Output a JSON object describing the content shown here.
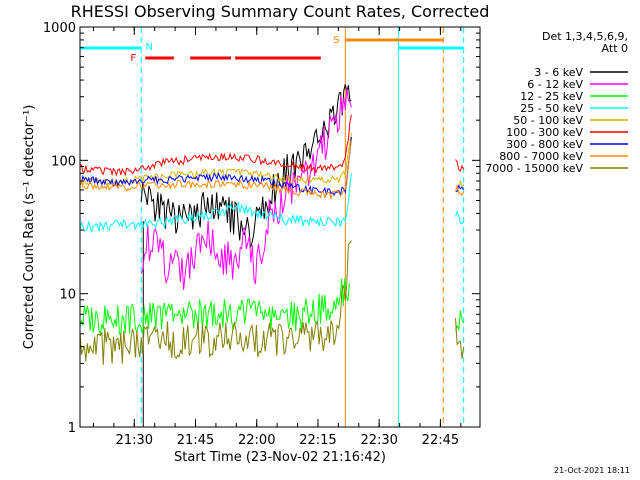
{
  "chart_data": {
    "type": "line",
    "title": "RHESSI Observing Summary Count Rates, Corrected",
    "xlabel": "Start Time (23-Nov-02 21:16:42)",
    "ylabel": "Corrected Count Rate (s⁻¹ detector⁻¹)",
    "y_scale": "log",
    "ylim": [
      1,
      1000
    ],
    "y_ticks": [
      {
        "value": 1,
        "label": "1"
      },
      {
        "value": 10,
        "label": "10"
      },
      {
        "value": 100,
        "label": "100"
      },
      {
        "value": 1000,
        "label": "1000"
      }
    ],
    "x_unit": "minutes after 21:16:42",
    "xlim": [
      0,
      98
    ],
    "x_ticks": [
      {
        "value": 13.3,
        "label": "21:30"
      },
      {
        "value": 28.3,
        "label": "21:45"
      },
      {
        "value": 43.3,
        "label": "22:00"
      },
      {
        "value": 58.3,
        "label": "22:15"
      },
      {
        "value": 73.3,
        "label": "22:30"
      },
      {
        "value": 88.3,
        "label": "22:45"
      }
    ],
    "legend": {
      "header": [
        "Det 1,3,4,5,6,9,",
        "Att 0"
      ],
      "placement": "right"
    },
    "series": [
      {
        "name": "3 - 6 keV",
        "color": "#000000",
        "x": [
          0,
          5,
          10,
          14.5,
          15,
          18,
          22,
          25,
          28,
          32,
          35,
          38,
          41,
          44,
          47,
          50,
          53,
          56,
          59,
          62,
          65,
          66.5
        ],
        "values": [
          null,
          null,
          null,
          null,
          60,
          48,
          38,
          35,
          40,
          45,
          42,
          36,
          28,
          40,
          55,
          80,
          95,
          110,
          150,
          200,
          290,
          280
        ]
      },
      {
        "name": "6 - 12 keV",
        "color": "#ff00ff",
        "x": [
          0,
          5,
          10,
          14.5,
          15,
          17,
          20,
          23,
          25,
          28,
          31,
          34,
          37,
          40,
          43,
          46,
          50,
          53,
          56,
          59,
          62,
          65,
          66.5
        ],
        "values": [
          null,
          null,
          null,
          null,
          20,
          25,
          18,
          15,
          14,
          18,
          28,
          22,
          16,
          24,
          15,
          35,
          58,
          62,
          70,
          110,
          200,
          300,
          250
        ]
      },
      {
        "name": "12 - 25 keV",
        "color": "#00ff00",
        "x": [
          0,
          5,
          10,
          15,
          20,
          25,
          30,
          35,
          40,
          45,
          50,
          55,
          60,
          63,
          66,
          67,
          91,
          92,
          94
        ],
        "values": [
          6.5,
          6.5,
          6.5,
          6.5,
          7,
          7,
          7,
          7,
          7,
          7,
          6.5,
          7,
          8,
          9,
          12,
          null,
          null,
          6,
          6
        ]
      },
      {
        "name": "25 - 50 keV",
        "color": "#00ffff",
        "x": [
          0,
          5,
          10,
          15,
          20,
          25,
          30,
          35,
          38,
          40,
          45,
          50,
          55,
          60,
          63,
          65,
          66.5,
          67,
          91,
          92,
          94
        ],
        "values": [
          32,
          32,
          33,
          33,
          34,
          36,
          38,
          42,
          45,
          43,
          38,
          36,
          35,
          35,
          34,
          35,
          80,
          null,
          null,
          40,
          35
        ]
      },
      {
        "name": "50 - 100 keV",
        "color": "#d4b400",
        "x": [
          0,
          5,
          10,
          15,
          20,
          25,
          30,
          35,
          40,
          45,
          50,
          55,
          60,
          63,
          65,
          66.5,
          67,
          91,
          92,
          94
        ],
        "values": [
          70,
          68,
          68,
          72,
          75,
          78,
          80,
          80,
          80,
          76,
          72,
          70,
          70,
          72,
          80,
          160,
          null,
          null,
          68,
          66
        ]
      },
      {
        "name": "100 - 300 keV",
        "color": "#ff0000",
        "x": [
          0,
          5,
          10,
          15,
          20,
          25,
          30,
          35,
          40,
          45,
          50,
          55,
          60,
          63,
          65,
          66.5,
          67,
          91,
          92,
          94
        ],
        "values": [
          88,
          84,
          82,
          86,
          95,
          100,
          105,
          106,
          104,
          100,
          92,
          88,
          86,
          88,
          100,
          220,
          null,
          null,
          95,
          85
        ]
      },
      {
        "name": "300 - 800 keV",
        "color": "#0000ff",
        "x": [
          0,
          5,
          10,
          15,
          20,
          25,
          30,
          35,
          40,
          45,
          50,
          55,
          60,
          63,
          65,
          66.5,
          67,
          91,
          92,
          94
        ],
        "values": [
          72,
          70,
          68,
          70,
          72,
          72,
          74,
          76,
          72,
          70,
          65,
          60,
          58,
          58,
          60,
          150,
          null,
          null,
          62,
          60
        ]
      },
      {
        "name": "800 - 7000 keV",
        "color": "#ff8800",
        "x": [
          0,
          5,
          10,
          15,
          20,
          25,
          30,
          35,
          40,
          45,
          50,
          55,
          60,
          63,
          65,
          66.5,
          67,
          91,
          92,
          94
        ],
        "values": [
          66,
          64,
          62,
          64,
          66,
          66,
          66,
          67,
          66,
          64,
          60,
          57,
          55,
          56,
          58,
          140,
          null,
          null,
          60,
          58
        ]
      },
      {
        "name": "7000 - 15000 keV",
        "color": "#808000",
        "x": [
          0,
          5,
          10,
          15,
          20,
          25,
          30,
          35,
          40,
          45,
          50,
          55,
          60,
          63,
          65,
          66.5,
          67,
          91,
          92,
          94
        ],
        "values": [
          4,
          4,
          4,
          4.5,
          4.5,
          4.5,
          4.5,
          4.5,
          4.5,
          4.5,
          4.5,
          4.5,
          4.5,
          5,
          12,
          25,
          null,
          null,
          5,
          4
        ]
      }
    ],
    "annotations": {
      "markers": [
        {
          "label": "N",
          "color": "#00ffff"
        },
        {
          "label": "F",
          "color": "#ff0000"
        },
        {
          "label": "S",
          "color": "#ff8800"
        }
      ],
      "flare_bars": [
        [
          16,
          23
        ],
        [
          27,
          37
        ],
        [
          38,
          59
        ]
      ],
      "saa_bar": [
        65,
        89
      ],
      "night_bar": [
        0,
        15
      ],
      "night_bar_2": [
        78,
        94
      ],
      "cyan_lines_solid": [
        0,
        78
      ],
      "cyan_lines_dashed": [
        15,
        94
      ],
      "orange_line_solid": 65,
      "orange_line_dashed": 89,
      "black_line": 15.5
    }
  },
  "footer": "21-Oct-2021 18:11"
}
